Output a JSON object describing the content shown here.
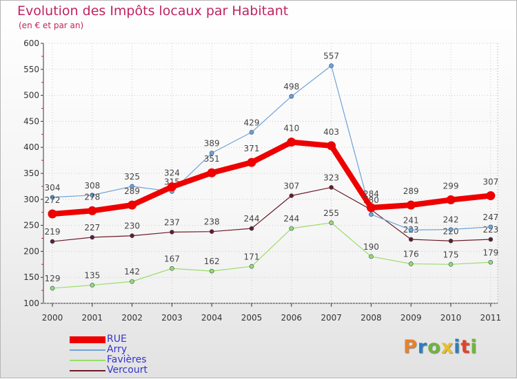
{
  "title": "Evolution des Impôts locaux par Habitant",
  "subtitle": "(en € et par an)",
  "logo": {
    "text": [
      "P",
      "r",
      "o",
      "x",
      "i",
      "t",
      "i"
    ],
    "colors": [
      "#e8822a",
      "#2a7ec0",
      "#6fb43f",
      "#e8c12a",
      "#2a7ec0",
      "#e0442a",
      "#6fb43f"
    ]
  },
  "chart_data": {
    "type": "line",
    "title": "Evolution des Impôts locaux par Habitant",
    "subtitle": "(en € et par an)",
    "xlabel": "",
    "ylabel": "",
    "ylim": [
      100,
      600
    ],
    "yticks": [
      100,
      150,
      200,
      250,
      300,
      350,
      400,
      450,
      500,
      550,
      600
    ],
    "categories": [
      "2000",
      "2001",
      "2002",
      "2003",
      "2004",
      "2005",
      "2006",
      "2007",
      "2008",
      "2009",
      "2010",
      "2011"
    ],
    "legend_position": "bottom-left",
    "series": [
      {
        "name": "Vercourt",
        "color": "#6b1a26",
        "width": 1.2,
        "r": 3,
        "values": [
          219,
          227,
          230,
          237,
          238,
          244,
          307,
          323,
          280,
          223,
          220,
          223
        ],
        "labels": [
          "219",
          "227",
          "230",
          "237",
          "238",
          "244",
          "307",
          "323",
          "280",
          "223",
          "220",
          "223"
        ]
      },
      {
        "name": "Favières",
        "color": "#99dd66",
        "width": 1.2,
        "r": 3,
        "values": [
          129,
          135,
          142,
          167,
          162,
          171,
          244,
          255,
          190,
          176,
          175,
          179
        ],
        "labels": [
          "129",
          "135",
          "142",
          "167",
          "162",
          "171",
          "244",
          "255",
          "190",
          "176",
          "175",
          "179"
        ]
      },
      {
        "name": "Arry",
        "color": "#6ea3d8",
        "width": 1.2,
        "r": 3,
        "values": [
          304,
          308,
          325,
          315,
          389,
          429,
          498,
          557,
          271,
          241,
          242,
          247
        ],
        "labels": [
          "304",
          "308",
          "325",
          "315",
          "389",
          "429",
          "498",
          "557",
          "",
          "241",
          "242",
          "247"
        ]
      },
      {
        "name": "RUE",
        "color": "#ee0000",
        "width": 8,
        "r": 6.5,
        "values": [
          272,
          278,
          289,
          324,
          351,
          371,
          410,
          403,
          284,
          289,
          299,
          307
        ],
        "labels": [
          "272",
          "278",
          "289",
          "324",
          "351",
          "371",
          "410",
          "403",
          "284",
          "289",
          "299",
          "307"
        ]
      }
    ]
  }
}
